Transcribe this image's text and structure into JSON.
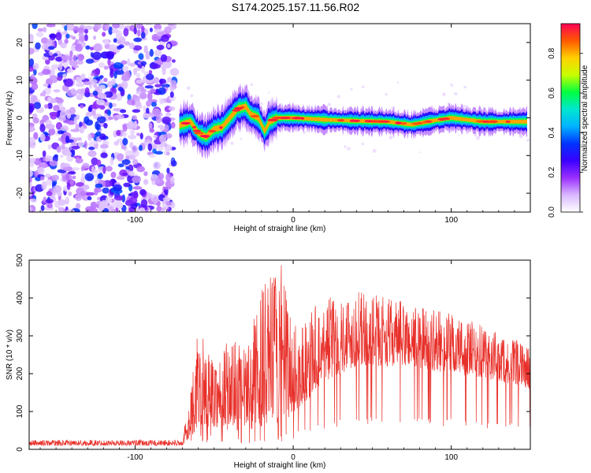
{
  "title": "S174.2025.157.11.56.R02",
  "chart_data": [
    {
      "type": "heatmap",
      "xlabel": "Height of straight line (km)",
      "ylabel": "Frequency (Hz)",
      "xlim": [
        -167,
        150
      ],
      "ylim": [
        -25,
        25
      ],
      "x_ticks": [
        -100,
        0,
        100
      ],
      "y_ticks": [
        -20,
        -10,
        0,
        10,
        20
      ],
      "colorbar": {
        "label": "Normalized spectral amplitude",
        "range": [
          0,
          0.95
        ],
        "ticks": [
          0.0,
          0.2,
          0.4,
          0.6,
          0.8
        ],
        "colormap": [
          "#ffffff",
          "#d9b8ff",
          "#9b30ff",
          "#3a00ff",
          "#0033ff",
          "#00b3ff",
          "#00e6d0",
          "#00ff40",
          "#c8ff00",
          "#ffd000",
          "#ff5a00",
          "#ff0055"
        ]
      },
      "noise_region": {
        "x": [
          -167,
          -75
        ],
        "y": [
          -25,
          25
        ],
        "amplitude_range": [
          0.0,
          0.1
        ]
      },
      "ridge": [
        {
          "x": -72,
          "f": -2.0
        },
        {
          "x": -65,
          "f": -1.0
        },
        {
          "x": -60,
          "f": -4.0
        },
        {
          "x": -55,
          "f": -5.0
        },
        {
          "x": -50,
          "f": -3.0
        },
        {
          "x": -45,
          "f": -2.5
        },
        {
          "x": -40,
          "f": 0.0
        },
        {
          "x": -35,
          "f": 2.5
        },
        {
          "x": -30,
          "f": 3.0
        },
        {
          "x": -27,
          "f": 1.0
        },
        {
          "x": -22,
          "f": 0.0
        },
        {
          "x": -18,
          "f": -3.5
        },
        {
          "x": -15,
          "f": -1.0
        },
        {
          "x": -10,
          "f": 0.0
        },
        {
          "x": 0,
          "f": 0.0
        },
        {
          "x": 20,
          "f": -0.5
        },
        {
          "x": 40,
          "f": -0.8
        },
        {
          "x": 60,
          "f": -1.0
        },
        {
          "x": 75,
          "f": -1.8
        },
        {
          "x": 85,
          "f": -1.0
        },
        {
          "x": 100,
          "f": 0.0
        },
        {
          "x": 120,
          "f": -1.0
        },
        {
          "x": 148,
          "f": -1.0
        }
      ]
    },
    {
      "type": "line",
      "xlabel": "Height of straight line (km)",
      "ylabel": "SNR (10 * v/v)",
      "xlim": [
        -167,
        150
      ],
      "ylim": [
        0,
        500
      ],
      "x_ticks": [
        -100,
        0,
        100
      ],
      "y_ticks": [
        0,
        100,
        200,
        300,
        400,
        500
      ],
      "color": "#e8302a",
      "envelope": [
        {
          "x": -167,
          "base": 10,
          "peak": 25
        },
        {
          "x": -70,
          "base": 10,
          "peak": 25
        },
        {
          "x": -65,
          "base": 30,
          "peak": 160
        },
        {
          "x": -60,
          "base": 60,
          "peak": 320
        },
        {
          "x": -50,
          "base": 60,
          "peak": 240
        },
        {
          "x": -40,
          "base": 50,
          "peak": 300
        },
        {
          "x": -30,
          "base": 50,
          "peak": 260
        },
        {
          "x": -20,
          "base": 60,
          "peak": 430
        },
        {
          "x": -8,
          "base": 70,
          "peak": 500
        },
        {
          "x": 0,
          "base": 90,
          "peak": 330
        },
        {
          "x": 20,
          "base": 180,
          "peak": 410
        },
        {
          "x": 40,
          "base": 220,
          "peak": 420
        },
        {
          "x": 70,
          "base": 220,
          "peak": 390
        },
        {
          "x": 100,
          "base": 200,
          "peak": 360
        },
        {
          "x": 130,
          "base": 180,
          "peak": 310
        },
        {
          "x": 150,
          "base": 160,
          "peak": 270
        }
      ]
    }
  ]
}
